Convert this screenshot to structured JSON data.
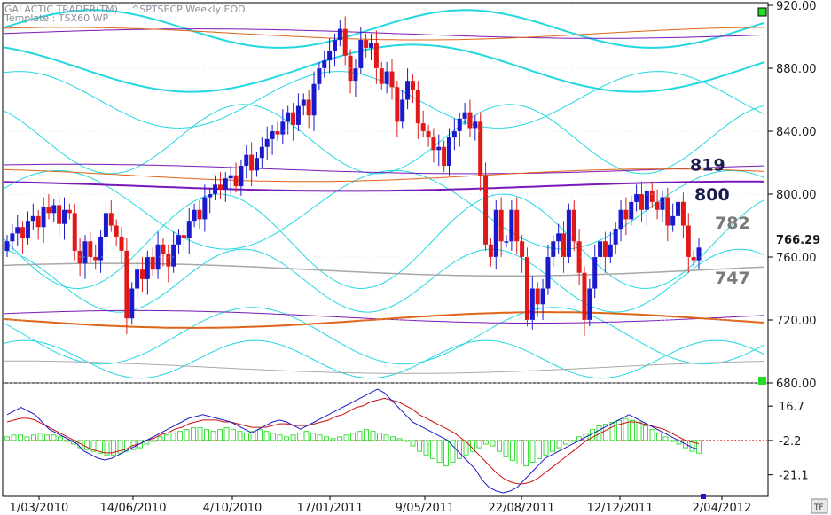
{
  "header": {
    "app_title": "GALACTIC TRADER(TM)",
    "template": "Template : TSX60 WP",
    "symbol": "^SPTSECP Weekly EOD"
  },
  "colors": {
    "up_candle": "#1a1acc",
    "down_candle": "#e01818",
    "cycle_cyan": "#22d8e0",
    "cycle_purple": "#7a18b8",
    "cycle_orange": "#e06418",
    "cycle_gray": "#a8a8a8",
    "histogram": "#3ce03c",
    "osc_fast": "#1a1acc",
    "osc_slow": "#cc1010",
    "zero_line": "#cc1010",
    "marker_green": "#22dd22"
  },
  "icons": {
    "top_marker": "green-square-icon",
    "bottom_marker": "green-square-icon",
    "tf_button": "tf-icon"
  },
  "tf_label": "TF",
  "chart_data": [
    {
      "type": "candlestick",
      "title": "^SPTSECP Weekly EOD",
      "x_tick_labels": [
        "1/03/2010",
        "14/06/2010",
        "4/10/2010",
        "17/01/2011",
        "9/05/2011",
        "22/08/2011",
        "12/12/2011",
        "2/04/2012"
      ],
      "y_tick_labels": [
        "920.00",
        "880.00",
        "840.00",
        "800.00",
        "760.00",
        "720.00",
        "680.00"
      ],
      "ylim": [
        680,
        920
      ],
      "last_price_label": "766.29",
      "annotations": [
        {
          "text": "819",
          "value": 819,
          "color": "#1a1a4e"
        },
        {
          "text": "800",
          "value": 800,
          "color": "#1a1a4e"
        },
        {
          "text": "782",
          "value": 782,
          "color": "#7a7a7a"
        },
        {
          "text": "747",
          "value": 747,
          "color": "#7a7a7a"
        }
      ],
      "closes": [
        770,
        775,
        779,
        772,
        783,
        786,
        779,
        792,
        788,
        793,
        781,
        790,
        788,
        764,
        756,
        770,
        760,
        758,
        773,
        788,
        780,
        773,
        764,
        721,
        740,
        752,
        746,
        760,
        752,
        768,
        762,
        754,
        768,
        774,
        772,
        783,
        790,
        784,
        798,
        800,
        806,
        803,
        810,
        812,
        805,
        818,
        825,
        815,
        823,
        830,
        835,
        840,
        838,
        846,
        852,
        844,
        856,
        860,
        850,
        870,
        880,
        885,
        891,
        898,
        905,
        888,
        872,
        880,
        898,
        893,
        896,
        880,
        870,
        878,
        868,
        846,
        860,
        872,
        866,
        845,
        840,
        836,
        828,
        830,
        818,
        836,
        840,
        848,
        852,
        842,
        846,
        812,
        768,
        760,
        790,
        770,
        770,
        790,
        770,
        760,
        720,
        740,
        730,
        740,
        760,
        770,
        775,
        760,
        790,
        770,
        750,
        720,
        740,
        760,
        770,
        760,
        768,
        778,
        790,
        784,
        795,
        800,
        790,
        802,
        795,
        790,
        798,
        780,
        786,
        795,
        780,
        760,
        758,
        766
      ],
      "cycle_levels": [
        819,
        800,
        782,
        747
      ],
      "oscillator": {
        "y_tick_labels": [
          "16.7",
          "-2.2",
          "-21.1"
        ],
        "ylim": [
          -32,
          28
        ],
        "zero_value": -2.2,
        "histogram": [
          2,
          3,
          3,
          2,
          3,
          4,
          3,
          3,
          2,
          0,
          -2,
          -4,
          -5,
          -6,
          -7,
          -8,
          -8,
          -7,
          -6,
          -5,
          -4,
          -2,
          0,
          2,
          3,
          4,
          5,
          6,
          7,
          7,
          6,
          5,
          6,
          7,
          6,
          5,
          4,
          5,
          6,
          5,
          4,
          3,
          2,
          3,
          4,
          5,
          4,
          3,
          2,
          1,
          2,
          3,
          4,
          5,
          6,
          5,
          4,
          3,
          2,
          1,
          0,
          -3,
          -6,
          -8,
          -10,
          -12,
          -14,
          -12,
          -10,
          -8,
          -6,
          -4,
          -2,
          -3,
          -6,
          -9,
          -11,
          -13,
          -14,
          -12,
          -10,
          -8,
          -6,
          -4,
          -2,
          0,
          2,
          4,
          6,
          8,
          9,
          10,
          11,
          12,
          11,
          10,
          8,
          6,
          4,
          2,
          0,
          -2,
          -4,
          -6,
          -7
        ],
        "fast": [
          12,
          14,
          16,
          14,
          12,
          8,
          4,
          2,
          0,
          -2,
          -4,
          -8,
          -10,
          -12,
          -13,
          -12,
          -10,
          -8,
          -6,
          -4,
          -2,
          0,
          2,
          4,
          6,
          8,
          10,
          11,
          12,
          11,
          10,
          9,
          8,
          6,
          4,
          2,
          4,
          6,
          8,
          9,
          8,
          6,
          4,
          6,
          8,
          10,
          12,
          14,
          16,
          18,
          20,
          22,
          24,
          26,
          24,
          20,
          16,
          12,
          8,
          6,
          4,
          2,
          0,
          -2,
          -6,
          -10,
          -14,
          -18,
          -24,
          -28,
          -30,
          -31,
          -30,
          -28,
          -24,
          -20,
          -16,
          -12,
          -10,
          -8,
          -6,
          -4,
          -2,
          0,
          2,
          4,
          6,
          8,
          10,
          12,
          10,
          8,
          6,
          4,
          2,
          0,
          -2,
          -4,
          -6,
          -7
        ],
        "slow": [
          8,
          9,
          10,
          10,
          9,
          7,
          5,
          3,
          1,
          -1,
          -3,
          -5,
          -7,
          -8,
          -9,
          -9,
          -8,
          -7,
          -5,
          -4,
          -2,
          -1,
          1,
          2,
          4,
          5,
          7,
          8,
          9,
          9,
          9,
          8,
          8,
          7,
          6,
          5,
          5,
          5,
          6,
          7,
          7,
          6,
          6,
          6,
          7,
          8,
          9,
          11,
          12,
          14,
          16,
          17,
          19,
          20,
          21,
          20,
          19,
          17,
          15,
          12,
          10,
          8,
          6,
          4,
          2,
          -1,
          -4,
          -8,
          -12,
          -16,
          -20,
          -23,
          -25,
          -26,
          -26,
          -25,
          -23,
          -20,
          -17,
          -14,
          -11,
          -8,
          -5,
          -2,
          0,
          2,
          4,
          6,
          7,
          8,
          8,
          7,
          6,
          5,
          4,
          2,
          0,
          -2,
          -3,
          -4
        ]
      }
    }
  ]
}
